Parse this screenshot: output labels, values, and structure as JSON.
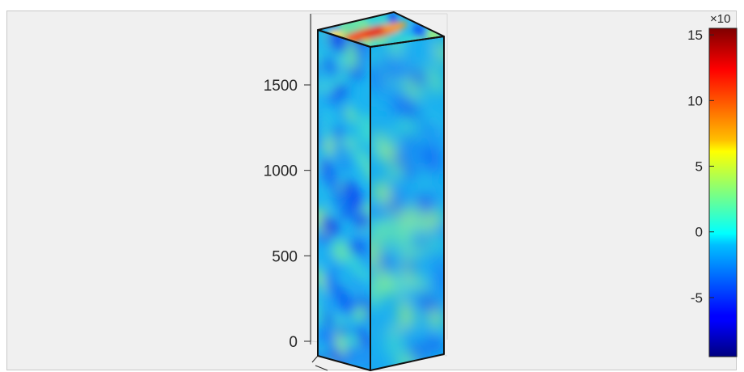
{
  "chart_data": {
    "type": "heatmap",
    "title": "",
    "xlabel": "",
    "ylabel": "",
    "zlabel": "",
    "z_axis": {
      "ticks": [
        0,
        500,
        1000,
        1500
      ],
      "tick_labels": [
        "0",
        "500",
        "1000",
        "1500"
      ],
      "range": [
        -80,
        1880
      ]
    },
    "colormap": "jet",
    "colorbar": {
      "ticks": [
        -5,
        0,
        5,
        10,
        15
      ],
      "tick_labels": [
        "-5",
        "0",
        "5",
        "10",
        "15"
      ],
      "range": [
        -9.5,
        15.5
      ],
      "exponent_label": "×10"
    },
    "grid": false,
    "legend": "none"
  },
  "figure": {
    "background": "#f0f0f0",
    "axis_color": "#262626",
    "edge_color": "#111111"
  }
}
